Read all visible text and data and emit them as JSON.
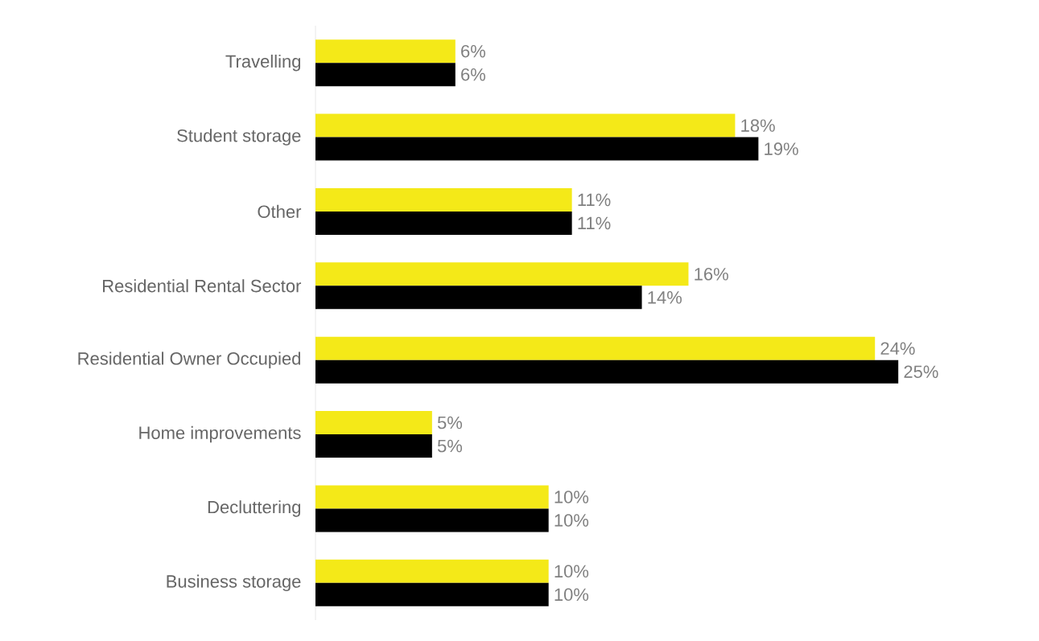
{
  "chart_data": {
    "type": "bar",
    "orientation": "horizontal",
    "categories": [
      "Travelling",
      "Student storage",
      "Other",
      "Residential Rental Sector",
      "Residential Owner Occupied",
      "Home improvements",
      "Decluttering",
      "Business storage"
    ],
    "series": [
      {
        "color": "#f4e918",
        "values": [
          6,
          18,
          11,
          16,
          24,
          5,
          10,
          10
        ],
        "value_labels": [
          "6%",
          "18%",
          "11%",
          "16%",
          "24%",
          "5%",
          "10%",
          "10%"
        ]
      },
      {
        "color": "#000000",
        "values": [
          6,
          19,
          11,
          14,
          25,
          5,
          10,
          10
        ],
        "value_labels": [
          "6%",
          "19%",
          "11%",
          "14%",
          "25%",
          "5%",
          "10%",
          "10%"
        ]
      }
    ]
  }
}
